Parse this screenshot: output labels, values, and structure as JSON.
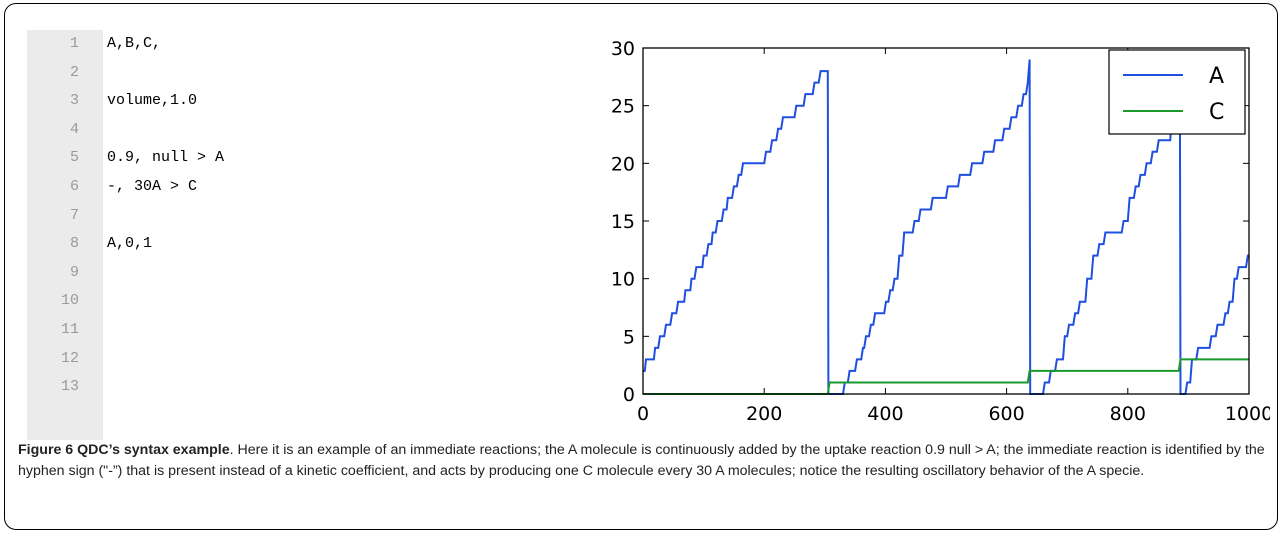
{
  "code": {
    "lines": [
      {
        "n": "1",
        "text": "A,B,C,"
      },
      {
        "n": "2",
        "text": ""
      },
      {
        "n": "3",
        "text": "volume,1.0"
      },
      {
        "n": "4",
        "text": ""
      },
      {
        "n": "5",
        "text": "0.9, null > A"
      },
      {
        "n": "6",
        "text": "-, 30A > C"
      },
      {
        "n": "7",
        "text": ""
      },
      {
        "n": "8",
        "text": "A,0,1"
      },
      {
        "n": "9",
        "text": ""
      },
      {
        "n": "10",
        "text": ""
      },
      {
        "n": "11",
        "text": ""
      },
      {
        "n": "12",
        "text": ""
      },
      {
        "n": "13",
        "text": ""
      }
    ]
  },
  "chart_data": {
    "type": "line",
    "xlim": [
      0,
      1000
    ],
    "ylim": [
      0,
      30
    ],
    "xticks": [
      "0",
      "200",
      "400",
      "600",
      "800",
      "1000"
    ],
    "yticks": [
      "0",
      "5",
      "10",
      "15",
      "20",
      "25",
      "30"
    ],
    "grid": false,
    "legend": "top-right",
    "series": [
      {
        "name": "A",
        "color": "#1f4fe0",
        "points": [
          [
            0,
            2
          ],
          [
            3,
            2
          ],
          [
            5,
            3
          ],
          [
            18,
            3
          ],
          [
            20,
            4
          ],
          [
            25,
            4
          ],
          [
            28,
            5
          ],
          [
            35,
            5
          ],
          [
            38,
            6
          ],
          [
            45,
            6
          ],
          [
            48,
            7
          ],
          [
            55,
            7
          ],
          [
            58,
            8
          ],
          [
            68,
            8
          ],
          [
            70,
            9
          ],
          [
            78,
            9
          ],
          [
            80,
            10
          ],
          [
            85,
            10
          ],
          [
            88,
            11
          ],
          [
            98,
            11
          ],
          [
            100,
            12
          ],
          [
            105,
            12
          ],
          [
            108,
            13
          ],
          [
            113,
            13
          ],
          [
            115,
            14
          ],
          [
            120,
            14
          ],
          [
            123,
            15
          ],
          [
            130,
            15
          ],
          [
            133,
            16
          ],
          [
            138,
            16
          ],
          [
            140,
            17
          ],
          [
            147,
            17
          ],
          [
            150,
            18
          ],
          [
            155,
            18
          ],
          [
            158,
            19
          ],
          [
            162,
            19
          ],
          [
            165,
            20
          ],
          [
            200,
            20
          ],
          [
            203,
            21
          ],
          [
            210,
            21
          ],
          [
            213,
            22
          ],
          [
            220,
            22
          ],
          [
            223,
            23
          ],
          [
            228,
            23
          ],
          [
            231,
            24
          ],
          [
            250,
            24
          ],
          [
            253,
            25
          ],
          [
            265,
            25
          ],
          [
            268,
            26
          ],
          [
            280,
            26
          ],
          [
            283,
            27
          ],
          [
            290,
            27
          ],
          [
            293,
            28
          ],
          [
            305,
            28
          ],
          [
            306,
            0
          ],
          [
            330,
            0
          ],
          [
            333,
            1
          ],
          [
            338,
            1
          ],
          [
            341,
            2
          ],
          [
            350,
            2
          ],
          [
            353,
            3
          ],
          [
            360,
            3
          ],
          [
            363,
            4
          ],
          [
            365,
            4
          ],
          [
            368,
            5
          ],
          [
            373,
            5
          ],
          [
            376,
            6
          ],
          [
            380,
            6
          ],
          [
            383,
            7
          ],
          [
            398,
            7
          ],
          [
            401,
            8
          ],
          [
            405,
            8
          ],
          [
            408,
            9
          ],
          [
            412,
            9
          ],
          [
            415,
            10
          ],
          [
            420,
            10
          ],
          [
            423,
            12
          ],
          [
            428,
            12
          ],
          [
            431,
            14
          ],
          [
            445,
            14
          ],
          [
            448,
            15
          ],
          [
            455,
            15
          ],
          [
            458,
            16
          ],
          [
            475,
            16
          ],
          [
            478,
            17
          ],
          [
            500,
            17
          ],
          [
            503,
            18
          ],
          [
            520,
            18
          ],
          [
            523,
            19
          ],
          [
            540,
            19
          ],
          [
            543,
            20
          ],
          [
            560,
            20
          ],
          [
            563,
            21
          ],
          [
            578,
            21
          ],
          [
            581,
            22
          ],
          [
            593,
            22
          ],
          [
            596,
            23
          ],
          [
            605,
            23
          ],
          [
            608,
            24
          ],
          [
            616,
            24
          ],
          [
            619,
            25
          ],
          [
            625,
            25
          ],
          [
            628,
            26
          ],
          [
            632,
            26
          ],
          [
            635,
            27
          ],
          [
            638,
            29
          ],
          [
            639,
            0
          ],
          [
            660,
            0
          ],
          [
            663,
            1
          ],
          [
            670,
            1
          ],
          [
            673,
            2
          ],
          [
            680,
            2
          ],
          [
            683,
            3
          ],
          [
            693,
            3
          ],
          [
            696,
            5
          ],
          [
            700,
            5
          ],
          [
            703,
            6
          ],
          [
            710,
            6
          ],
          [
            713,
            7
          ],
          [
            718,
            7
          ],
          [
            721,
            8
          ],
          [
            730,
            8
          ],
          [
            733,
            10
          ],
          [
            740,
            10
          ],
          [
            743,
            12
          ],
          [
            750,
            12
          ],
          [
            753,
            13
          ],
          [
            760,
            13
          ],
          [
            763,
            14
          ],
          [
            790,
            14
          ],
          [
            793,
            15
          ],
          [
            800,
            15
          ],
          [
            803,
            17
          ],
          [
            810,
            17
          ],
          [
            813,
            18
          ],
          [
            818,
            18
          ],
          [
            821,
            19
          ],
          [
            828,
            19
          ],
          [
            831,
            20
          ],
          [
            838,
            20
          ],
          [
            841,
            21
          ],
          [
            848,
            21
          ],
          [
            851,
            22
          ],
          [
            870,
            22
          ],
          [
            873,
            24
          ],
          [
            880,
            24
          ],
          [
            883,
            26
          ],
          [
            886,
            26
          ],
          [
            887,
            0
          ],
          [
            895,
            0
          ],
          [
            898,
            1
          ],
          [
            903,
            1
          ],
          [
            906,
            3
          ],
          [
            913,
            3
          ],
          [
            916,
            4
          ],
          [
            935,
            4
          ],
          [
            938,
            5
          ],
          [
            945,
            5
          ],
          [
            948,
            6
          ],
          [
            958,
            6
          ],
          [
            961,
            7
          ],
          [
            965,
            7
          ],
          [
            968,
            8
          ],
          [
            973,
            8
          ],
          [
            976,
            10
          ],
          [
            980,
            10
          ],
          [
            983,
            11
          ],
          [
            995,
            11
          ],
          [
            998,
            12
          ],
          [
            1000,
            12
          ]
        ]
      },
      {
        "name": "C",
        "color": "#1a9a2a",
        "points": [
          [
            0,
            0
          ],
          [
            305,
            0
          ],
          [
            308,
            1
          ],
          [
            635,
            1
          ],
          [
            638,
            2
          ],
          [
            884,
            2
          ],
          [
            887,
            3
          ],
          [
            1000,
            3
          ]
        ]
      }
    ]
  },
  "caption": {
    "label": "Figure 6 QDC’s syntax example",
    "text": ". Here it is an example of an immediate reactions; the A molecule is continuously added by the uptake reaction 0.9 null > A; the immediate reaction is identified by the hyphen sign (\"-”) that is present instead of a kinetic coefficient, and acts by producing one C molecule every 30 A molecules; notice the resulting oscillatory behavior of the A specie."
  }
}
